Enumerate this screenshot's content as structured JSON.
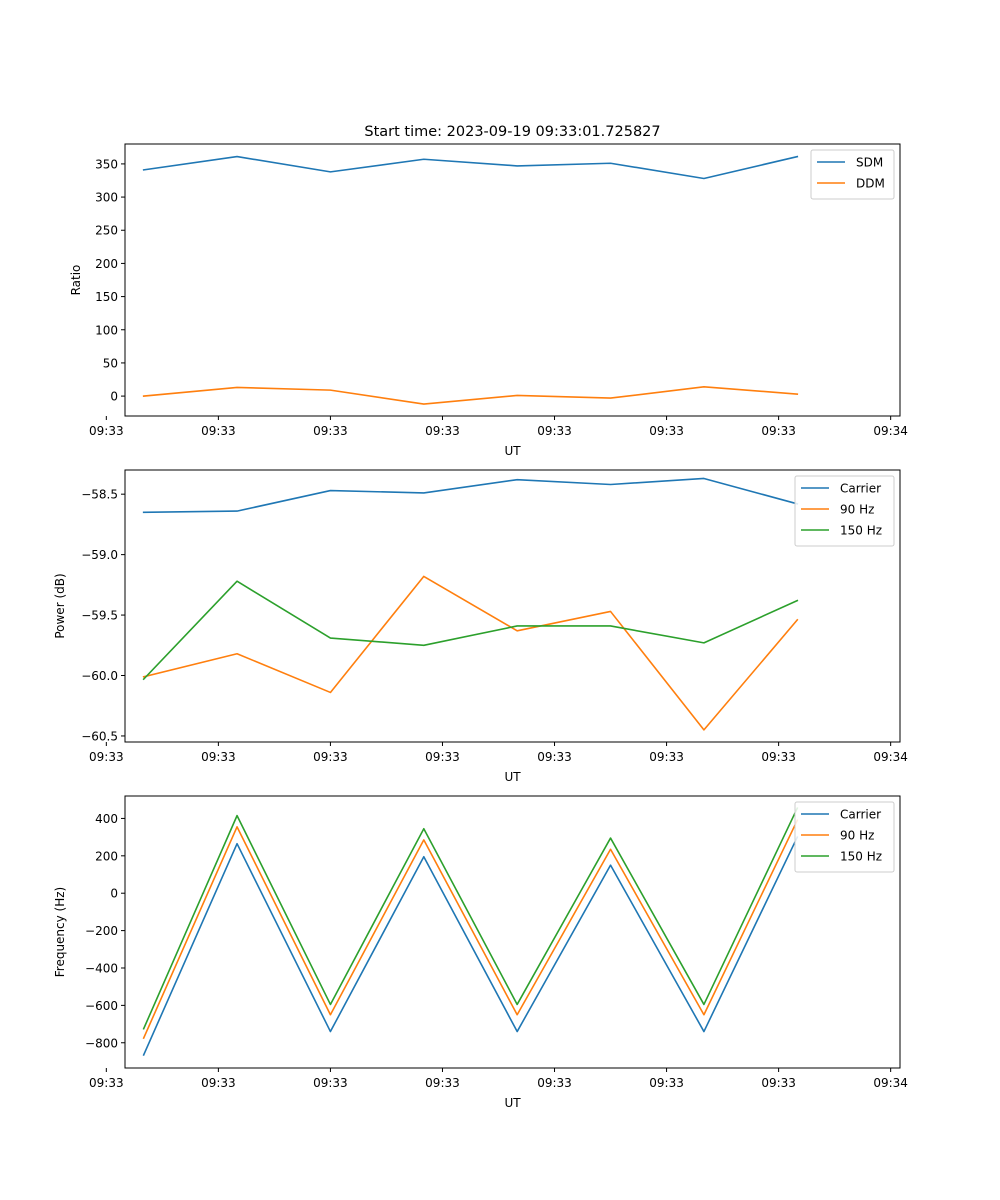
{
  "figure_title": "Start time: 2023-09-19 09:33:01.725827",
  "chart_data": [
    {
      "type": "line",
      "title": "Start time: 2023-09-19 09:33:01.725827",
      "xlabel": "UT",
      "ylabel": "Ratio",
      "x_tick_labels": [
        "09:33",
        "09:33",
        "09:33",
        "09:33",
        "09:33",
        "09:33",
        "09:33"
      ],
      "x_tick_last": "09:34",
      "x": [
        1,
        2,
        3,
        4,
        5,
        6,
        7,
        8
      ],
      "xlim": [
        0.8,
        9.1
      ],
      "ylim": [
        -30,
        380
      ],
      "y_ticks": [
        0,
        50,
        100,
        150,
        200,
        250,
        300,
        350
      ],
      "y_tick_labels": [
        "0",
        "50",
        "100",
        "150",
        "200",
        "250",
        "300",
        "350"
      ],
      "legend_position": "top-right",
      "series": [
        {
          "name": "SDM",
          "color": "#1f77b4",
          "values": [
            341,
            361,
            338,
            357,
            347,
            351,
            328,
            361
          ]
        },
        {
          "name": "DDM",
          "color": "#ff7f0e",
          "values": [
            0,
            13,
            9,
            -12,
            1,
            -3,
            14,
            3
          ]
        }
      ]
    },
    {
      "type": "line",
      "xlabel": "UT",
      "ylabel": "Power (dB)",
      "x_tick_labels": [
        "09:33",
        "09:33",
        "09:33",
        "09:33",
        "09:33",
        "09:33",
        "09:33"
      ],
      "x_tick_last": "09:34",
      "x": [
        1,
        2,
        3,
        4,
        5,
        6,
        7,
        8
      ],
      "xlim": [
        0.8,
        9.1
      ],
      "ylim": [
        -60.55,
        -58.3
      ],
      "y_ticks": [
        -60.5,
        -60.0,
        -59.5,
        -59.0,
        -58.5
      ],
      "y_tick_labels": [
        "−60.5",
        "−60.0",
        "−59.5",
        "−59.0",
        "−58.5"
      ],
      "legend_position": "top-right",
      "series": [
        {
          "name": "Carrier",
          "color": "#1f77b4",
          "values": [
            -58.65,
            -58.64,
            -58.47,
            -58.49,
            -58.38,
            -58.42,
            -58.37,
            -58.58
          ]
        },
        {
          "name": "90 Hz",
          "color": "#ff7f0e",
          "values": [
            -60.01,
            -59.82,
            -60.14,
            -59.18,
            -59.63,
            -59.47,
            -60.45,
            -59.54
          ]
        },
        {
          "name": "150 Hz",
          "color": "#2ca02c",
          "values": [
            -60.03,
            -59.22,
            -59.69,
            -59.75,
            -59.59,
            -59.59,
            -59.73,
            -59.38
          ]
        }
      ]
    },
    {
      "type": "line",
      "xlabel": "UT",
      "ylabel": "Frequency (Hz)",
      "x_tick_labels": [
        "09:33",
        "09:33",
        "09:33",
        "09:33",
        "09:33",
        "09:33",
        "09:33"
      ],
      "x_tick_last": "09:34",
      "x": [
        1,
        2,
        3,
        4,
        5,
        6,
        7,
        8
      ],
      "xlim": [
        0.8,
        9.1
      ],
      "ylim": [
        -935,
        520
      ],
      "y_ticks": [
        -800,
        -600,
        -400,
        -200,
        0,
        200,
        400
      ],
      "y_tick_labels": [
        "−800",
        "−600",
        "−400",
        "−200",
        "0",
        "200",
        "400"
      ],
      "legend_position": "top-right",
      "series": [
        {
          "name": "Carrier",
          "color": "#1f77b4",
          "values": [
            -865,
            265,
            -740,
            195,
            -740,
            150,
            -740,
            300
          ]
        },
        {
          "name": "90 Hz",
          "color": "#ff7f0e",
          "values": [
            -775,
            355,
            -650,
            285,
            -650,
            235,
            -650,
            390
          ]
        },
        {
          "name": "150 Hz",
          "color": "#2ca02c",
          "values": [
            -725,
            415,
            -595,
            345,
            -595,
            295,
            -595,
            455
          ]
        }
      ]
    }
  ]
}
